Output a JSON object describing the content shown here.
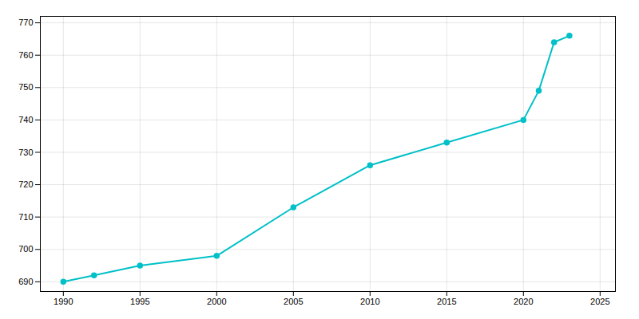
{
  "chart_data": {
    "type": "line",
    "x": [
      1990,
      1992,
      1995,
      2000,
      2005,
      2010,
      2015,
      2020,
      2021,
      2022,
      2023
    ],
    "values": [
      690,
      692,
      695,
      698,
      713,
      726,
      733,
      740,
      749,
      764,
      766
    ],
    "color": "#00c0c8",
    "marker": "circle",
    "xlim": [
      1988.5,
      2026
    ],
    "ylim": [
      687,
      772
    ],
    "xticks": [
      1990,
      1995,
      2000,
      2005,
      2010,
      2015,
      2020,
      2025
    ],
    "yticks": [
      690,
      700,
      710,
      720,
      730,
      740,
      750,
      760,
      770
    ],
    "grid": true
  }
}
